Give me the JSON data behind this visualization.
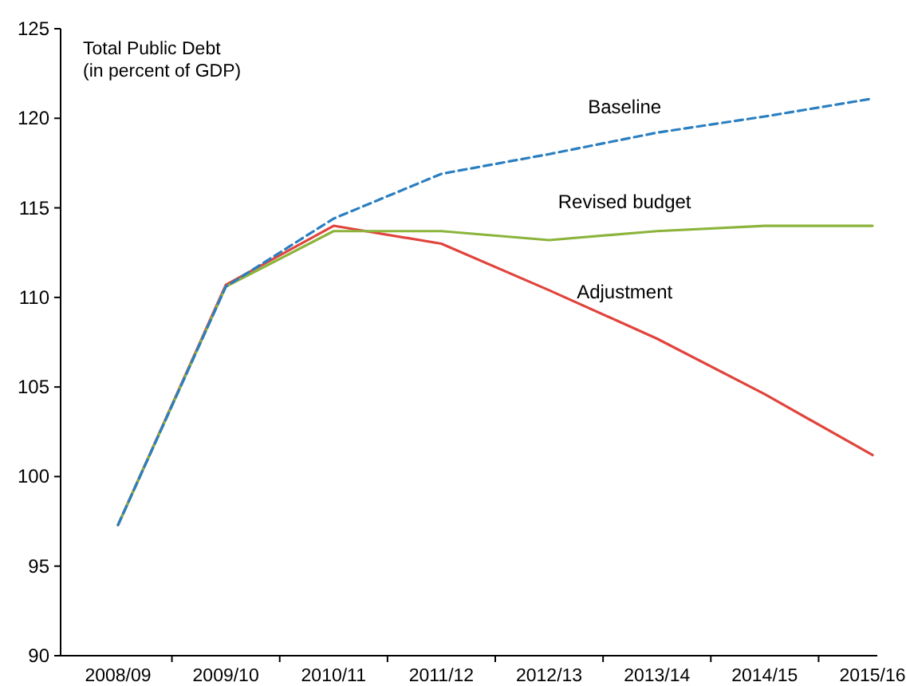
{
  "chart_data": {
    "type": "line",
    "title": "Total Public Debt",
    "subtitle": "(in percent of GDP)",
    "categories": [
      "2008/09",
      "2009/10",
      "2010/11",
      "2011/12",
      "2012/13",
      "2013/14",
      "2014/15",
      "2015/16"
    ],
    "ylim": [
      90,
      125
    ],
    "yticks": [
      90,
      95,
      100,
      105,
      110,
      115,
      120,
      125
    ],
    "grid": false,
    "legend": false,
    "series": [
      {
        "name": "Baseline",
        "color": "#2a7fc1",
        "line_style": "dashed",
        "values": [
          97.3,
          110.6,
          114.4,
          116.9,
          118.0,
          119.2,
          120.1,
          121.1
        ]
      },
      {
        "name": "Revised budget",
        "color": "#8cb43c",
        "line_style": "solid",
        "values": [
          97.3,
          110.6,
          113.7,
          113.7,
          113.2,
          113.7,
          114.0,
          114.0
        ]
      },
      {
        "name": "Adjustment",
        "color": "#e0443c",
        "line_style": "solid",
        "values": [
          97.3,
          110.7,
          114.0,
          113.0,
          110.4,
          107.7,
          104.6,
          101.2
        ]
      }
    ]
  }
}
